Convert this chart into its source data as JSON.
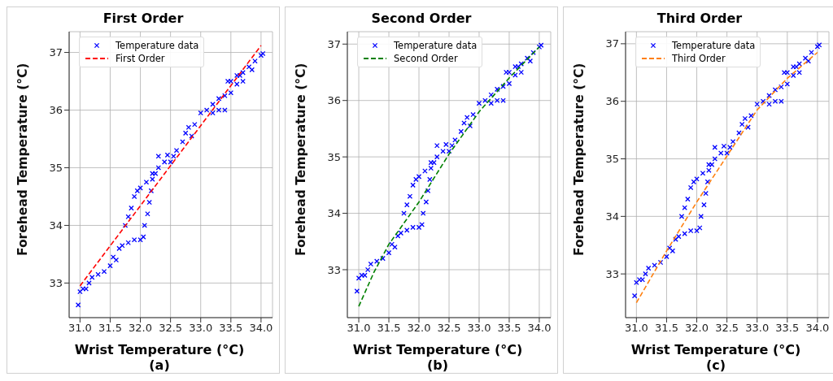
{
  "chart_data": [
    {
      "type": "scatter",
      "title": "First Order",
      "xlabel": "Wrist Temperature (°C)",
      "ylabel": "Forehead Temperature (°C)",
      "annotations": [
        "(a)"
      ],
      "xlim": [
        30.82,
        34.19
      ],
      "ylim": [
        32.4,
        37.36
      ],
      "xticks": [
        {
          "value": 31,
          "label": "31.0"
        },
        31.5,
        {
          "value": 32,
          "label": "32.0"
        },
        32.5,
        {
          "value": 33,
          "label": "33.0"
        },
        33.5,
        {
          "value": 34,
          "label": "34.0"
        }
      ],
      "yticks": [
        33,
        34,
        35,
        36,
        37
      ],
      "grid": true,
      "legend": "top left",
      "series": [
        {
          "name": "Temperature data",
          "type": "scatter",
          "color": "#0000ff",
          "marker": "cross",
          "x": [
            30.97,
            31.0,
            31.05,
            31.1,
            31.15,
            31.2,
            31.3,
            31.4,
            31.5,
            31.55,
            31.6,
            31.65,
            31.7,
            31.8,
            31.9,
            32.0,
            32.05,
            32.07,
            32.12,
            32.15,
            32.18,
            32.2,
            32.25,
            31.75,
            31.8,
            31.85,
            31.9,
            31.95,
            32.0,
            32.1,
            32.2,
            32.3,
            32.3,
            32.45,
            32.4,
            32.5,
            32.55,
            32.6,
            32.7,
            32.75,
            32.8,
            32.85,
            32.9,
            33.0,
            33.1,
            33.2,
            33.3,
            33.4,
            33.2,
            33.3,
            33.4,
            33.5,
            33.6,
            33.65,
            33.5,
            33.45,
            33.6,
            33.7,
            33.8,
            33.9,
            34.0,
            34.03,
            33.85,
            33.7
          ],
          "values": [
            32.62,
            32.85,
            32.9,
            32.9,
            33.0,
            33.1,
            33.15,
            33.2,
            33.3,
            33.45,
            33.4,
            33.6,
            33.65,
            33.7,
            33.75,
            33.75,
            33.8,
            34.0,
            34.2,
            34.4,
            34.6,
            34.8,
            34.9,
            34.0,
            34.15,
            34.3,
            34.5,
            34.6,
            34.65,
            34.75,
            34.9,
            35.0,
            35.2,
            35.22,
            35.1,
            35.1,
            35.2,
            35.3,
            35.45,
            35.6,
            35.7,
            35.55,
            35.75,
            35.95,
            36.0,
            35.95,
            36.0,
            36.0,
            36.1,
            36.2,
            36.25,
            36.3,
            36.45,
            36.6,
            36.5,
            36.5,
            36.6,
            36.65,
            36.75,
            36.85,
            36.95,
            36.98,
            36.7,
            36.5
          ]
        },
        {
          "name": "First Order",
          "type": "line",
          "color": "#ff0000",
          "line_style": "dashed",
          "marker": "none",
          "x": [
            31.0,
            34.0
          ],
          "values": [
            32.95,
            37.12
          ]
        }
      ]
    },
    {
      "type": "scatter",
      "title": "Second Order",
      "xlabel": "Wrist Temperature (°C)",
      "ylabel": "Forehead Temperature (°C)",
      "annotations": [
        "(b)"
      ],
      "xlim": [
        30.81,
        34.19
      ],
      "ylim": [
        32.15,
        37.22
      ],
      "xticks": [
        {
          "value": 31,
          "label": "31.0"
        },
        31.5,
        {
          "value": 32,
          "label": "32.0"
        },
        32.5,
        {
          "value": 33,
          "label": "33.0"
        },
        33.5,
        {
          "value": 34,
          "label": "34.0"
        }
      ],
      "yticks": [
        33,
        34,
        35,
        36,
        37
      ],
      "grid": true,
      "legend": "top left",
      "series": [
        {
          "name": "Temperature data",
          "type": "scatter",
          "color": "#0000ff",
          "marker": "cross",
          "x": [
            30.97,
            31.0,
            31.05,
            31.1,
            31.15,
            31.2,
            31.3,
            31.4,
            31.5,
            31.55,
            31.6,
            31.65,
            31.7,
            31.8,
            31.9,
            32.0,
            32.05,
            32.07,
            32.12,
            32.15,
            32.18,
            32.2,
            32.25,
            31.75,
            31.8,
            31.85,
            31.9,
            31.95,
            32.0,
            32.1,
            32.2,
            32.3,
            32.3,
            32.45,
            32.4,
            32.5,
            32.55,
            32.6,
            32.7,
            32.75,
            32.8,
            32.85,
            32.9,
            33.0,
            33.1,
            33.2,
            33.3,
            33.4,
            33.2,
            33.3,
            33.4,
            33.5,
            33.6,
            33.65,
            33.5,
            33.45,
            33.6,
            33.7,
            33.8,
            33.9,
            34.0,
            34.03,
            33.85,
            33.7
          ],
          "values": [
            32.62,
            32.85,
            32.9,
            32.9,
            33.0,
            33.1,
            33.15,
            33.2,
            33.3,
            33.45,
            33.4,
            33.6,
            33.65,
            33.7,
            33.75,
            33.75,
            33.8,
            34.0,
            34.2,
            34.4,
            34.6,
            34.8,
            34.9,
            34.0,
            34.15,
            34.3,
            34.5,
            34.6,
            34.65,
            34.75,
            34.9,
            35.0,
            35.2,
            35.22,
            35.1,
            35.1,
            35.2,
            35.3,
            35.45,
            35.6,
            35.7,
            35.55,
            35.75,
            35.95,
            36.0,
            35.95,
            36.0,
            36.0,
            36.1,
            36.2,
            36.25,
            36.3,
            36.45,
            36.6,
            36.5,
            36.5,
            36.6,
            36.65,
            36.75,
            36.85,
            36.95,
            36.98,
            36.7,
            36.5
          ]
        },
        {
          "name": "Second Order",
          "type": "line",
          "color": "#008000",
          "line_style": "dashed",
          "marker": "none",
          "x": [
            31.0,
            31.25,
            31.5,
            32.0,
            32.5,
            33.0,
            33.5,
            34.0
          ],
          "values": [
            32.35,
            32.95,
            33.45,
            34.2,
            35.05,
            35.8,
            36.4,
            36.95
          ]
        }
      ]
    },
    {
      "type": "scatter",
      "title": "Third Order",
      "xlabel": "Wrist Temperature (°C)",
      "ylabel": "Forehead Temperature (°C)",
      "annotations": [
        "(c)"
      ],
      "xlim": [
        30.82,
        34.19
      ],
      "ylim": [
        32.24,
        37.21
      ],
      "xticks": [
        {
          "value": 31,
          "label": "31.0"
        },
        31.5,
        {
          "value": 32,
          "label": "32.0"
        },
        32.5,
        {
          "value": 33,
          "label": "33.0"
        },
        33.5,
        {
          "value": 34,
          "label": "34.0"
        }
      ],
      "yticks": [
        33,
        34,
        35,
        36,
        37
      ],
      "grid": true,
      "legend": "top left",
      "series": [
        {
          "name": "Temperature data",
          "type": "scatter",
          "color": "#0000ff",
          "marker": "cross",
          "x": [
            30.97,
            31.0,
            31.05,
            31.1,
            31.15,
            31.2,
            31.3,
            31.4,
            31.5,
            31.55,
            31.6,
            31.65,
            31.7,
            31.8,
            31.9,
            32.0,
            32.05,
            32.07,
            32.12,
            32.15,
            32.18,
            32.2,
            32.25,
            31.75,
            31.8,
            31.85,
            31.9,
            31.95,
            32.0,
            32.1,
            32.2,
            32.3,
            32.3,
            32.45,
            32.4,
            32.5,
            32.55,
            32.6,
            32.7,
            32.75,
            32.8,
            32.85,
            32.9,
            33.0,
            33.1,
            33.2,
            33.3,
            33.4,
            33.2,
            33.3,
            33.4,
            33.5,
            33.6,
            33.65,
            33.5,
            33.45,
            33.6,
            33.7,
            33.8,
            33.9,
            34.0,
            34.03,
            33.85,
            33.7
          ],
          "values": [
            32.62,
            32.85,
            32.9,
            32.9,
            33.0,
            33.1,
            33.15,
            33.2,
            33.3,
            33.45,
            33.4,
            33.6,
            33.65,
            33.7,
            33.75,
            33.75,
            33.8,
            34.0,
            34.2,
            34.4,
            34.6,
            34.8,
            34.9,
            34.0,
            34.15,
            34.3,
            34.5,
            34.6,
            34.65,
            34.75,
            34.9,
            35.0,
            35.2,
            35.22,
            35.1,
            35.1,
            35.2,
            35.3,
            35.45,
            35.6,
            35.7,
            35.55,
            35.75,
            35.95,
            36.0,
            35.95,
            36.0,
            36.0,
            36.1,
            36.2,
            36.25,
            36.3,
            36.45,
            36.6,
            36.5,
            36.5,
            36.6,
            36.65,
            36.75,
            36.85,
            36.95,
            36.98,
            36.7,
            36.5
          ]
        },
        {
          "name": "Third Order",
          "type": "line",
          "color": "#ff7f0e",
          "line_style": "dashed",
          "marker": "none",
          "x": [
            31.0,
            31.5,
            32.0,
            32.5,
            33.0,
            33.5,
            34.0
          ],
          "values": [
            32.5,
            33.4,
            34.25,
            35.05,
            35.85,
            36.4,
            36.85
          ]
        }
      ]
    }
  ]
}
